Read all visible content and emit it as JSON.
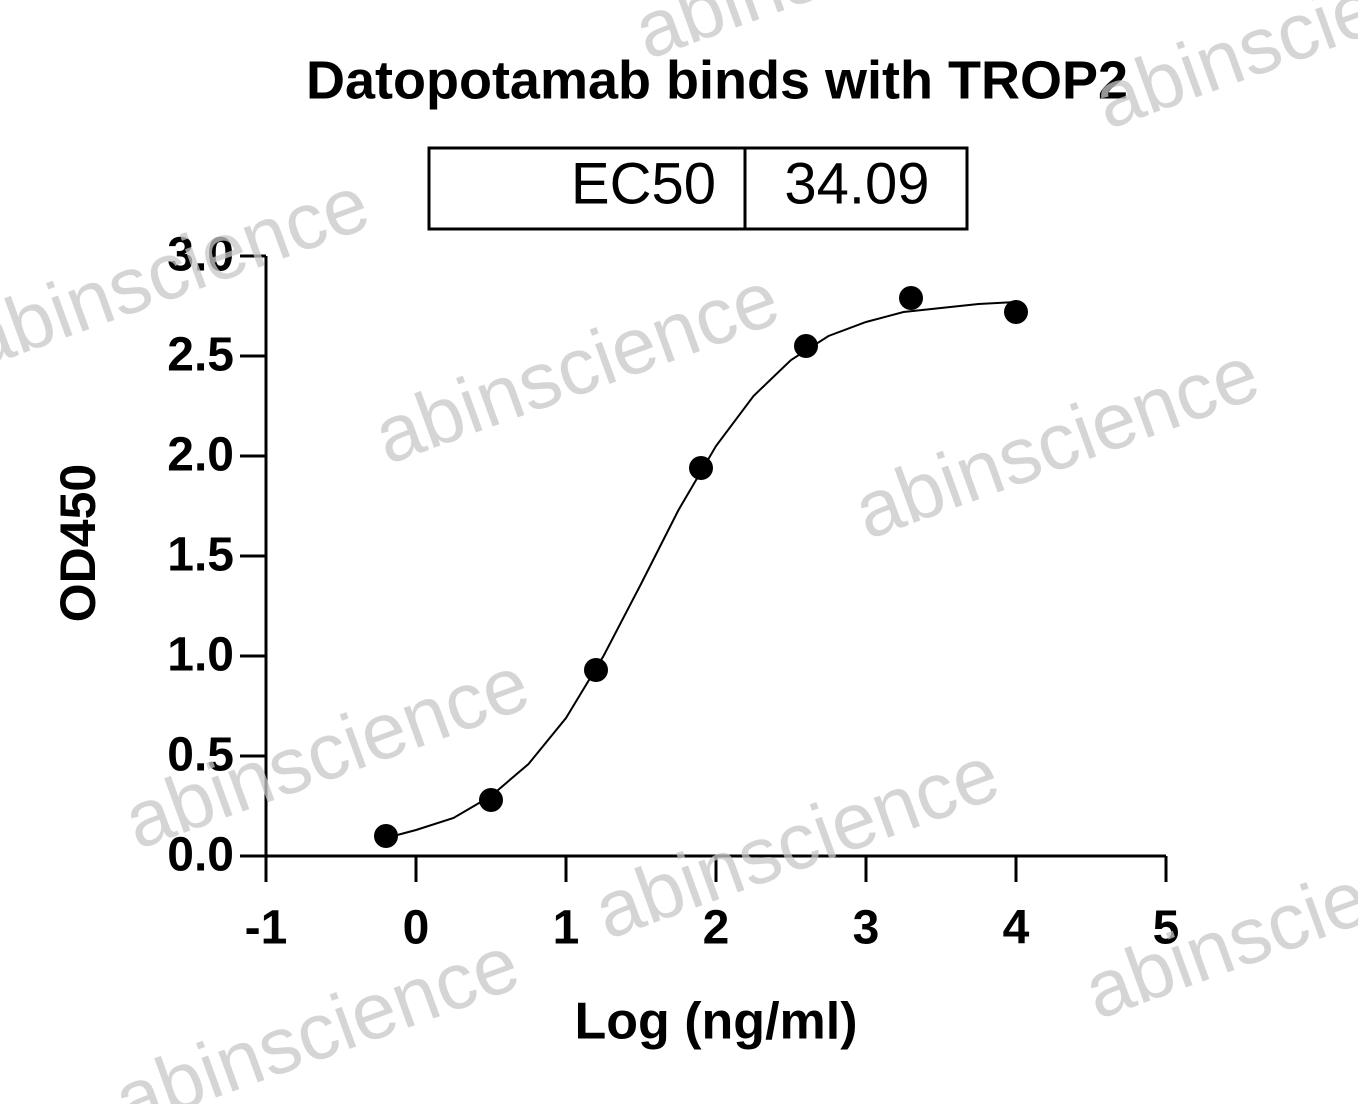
{
  "chart_data": {
    "type": "scatter",
    "title": "Datopotamab binds with TROP2",
    "table": {
      "label": "EC50",
      "value": "34.09"
    },
    "watermark": "abinscience",
    "xlabel": "Log (ng/ml)",
    "ylabel": "OD450",
    "xlim": [
      -1,
      5
    ],
    "xticks": [
      -1,
      0,
      1,
      2,
      3,
      4,
      5
    ],
    "ylim": [
      0,
      3
    ],
    "yticks": [
      {
        "value": 0,
        "label": "0.0"
      },
      0.5,
      {
        "value": 1,
        "label": "1.0"
      },
      1.5,
      {
        "value": 2,
        "label": "2.0"
      },
      2.5,
      {
        "value": 3,
        "label": "3.0"
      }
    ],
    "color": "#000000",
    "x": [
      -0.2,
      0.5,
      1.2,
      1.9,
      2.6,
      3.3,
      4.0
    ],
    "values": [
      0.1,
      0.28,
      0.93,
      1.94,
      2.55,
      2.79,
      2.72
    ],
    "fit": {
      "x": [
        -0.2,
        0,
        0.25,
        0.5,
        0.75,
        1.0,
        1.25,
        1.5,
        1.75,
        2.0,
        2.25,
        2.5,
        2.75,
        3.0,
        3.25,
        3.5,
        3.75,
        4.0
      ],
      "values": [
        0.09,
        0.13,
        0.19,
        0.3,
        0.46,
        0.69,
        1.0,
        1.36,
        1.73,
        2.05,
        2.3,
        2.48,
        2.6,
        2.67,
        2.72,
        2.74,
        2.76,
        2.77
      ]
    }
  }
}
